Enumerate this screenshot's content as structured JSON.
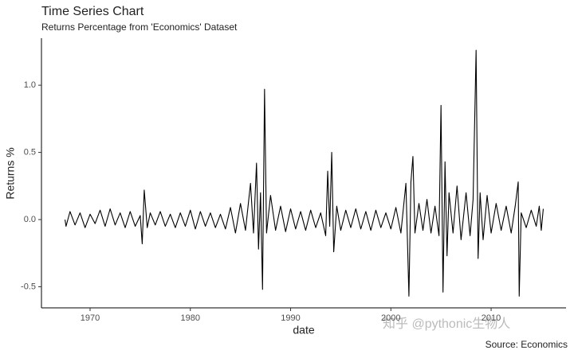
{
  "chart_data": {
    "type": "line",
    "title": "Time Series Chart",
    "subtitle": "Returns Percentage from 'Economics' Dataset",
    "x_label": "date",
    "y_label": "Returns %",
    "caption": "Source: Economics",
    "annotation": "知乎 @python​ic生物人",
    "x": [
      1967.5,
      1967.6,
      1968.0,
      1968.5,
      1969.0,
      1969.5,
      1970.0,
      1970.5,
      1971.0,
      1971.5,
      1972.0,
      1972.5,
      1973.0,
      1973.5,
      1974.0,
      1974.5,
      1975.0,
      1975.2,
      1975.4,
      1975.7,
      1976.0,
      1976.5,
      1977.0,
      1977.5,
      1978.0,
      1978.5,
      1979.0,
      1979.5,
      1980.0,
      1980.5,
      1981.0,
      1981.5,
      1982.0,
      1982.5,
      1983.0,
      1983.5,
      1984.0,
      1984.5,
      1985.0,
      1985.5,
      1986.0,
      1986.3,
      1986.6,
      1986.8,
      1987.0,
      1987.2,
      1987.4,
      1987.6,
      1988.0,
      1988.5,
      1989.0,
      1989.5,
      1990.0,
      1990.5,
      1991.0,
      1991.5,
      1992.0,
      1992.5,
      1993.0,
      1993.5,
      1993.7,
      1993.9,
      1994.1,
      1994.3,
      1994.6,
      1995.0,
      1995.5,
      1996.0,
      1996.5,
      1997.0,
      1997.5,
      1998.0,
      1998.5,
      1999.0,
      1999.5,
      2000.0,
      2000.5,
      2001.0,
      2001.5,
      2001.8,
      2002.0,
      2002.2,
      2002.4,
      2002.8,
      2003.2,
      2003.6,
      2004.0,
      2004.4,
      2004.8,
      2005.0,
      2005.2,
      2005.4,
      2005.6,
      2005.8,
      2006.2,
      2006.6,
      2007.0,
      2007.5,
      2007.9,
      2008.2,
      2008.5,
      2008.7,
      2008.9,
      2009.2,
      2009.6,
      2010.0,
      2010.5,
      2011.0,
      2011.5,
      2012.0,
      2012.4,
      2012.7,
      2012.8,
      2013.0,
      2013.5,
      2014.0,
      2014.5,
      2014.8,
      2015.0,
      2015.2
    ],
    "series": [
      {
        "name": "returns",
        "color": "#000000",
        "values": [
          0,
          -0.05,
          0.06,
          -0.04,
          0.05,
          -0.06,
          0.04,
          -0.03,
          0.07,
          -0.05,
          0.08,
          -0.04,
          0.05,
          -0.06,
          0.06,
          -0.05,
          0.03,
          -0.18,
          0.22,
          -0.06,
          0.05,
          -0.04,
          0.06,
          -0.05,
          0.04,
          -0.06,
          0.05,
          -0.05,
          0.07,
          -0.07,
          0.06,
          -0.05,
          0.05,
          -0.06,
          0.04,
          -0.07,
          0.09,
          -0.1,
          0.12,
          -0.08,
          0.27,
          -0.1,
          0.42,
          -0.22,
          0.2,
          -0.52,
          0.97,
          -0.1,
          0.18,
          -0.08,
          0.1,
          -0.09,
          0.08,
          -0.07,
          0.06,
          -0.08,
          0.07,
          -0.06,
          0.05,
          -0.12,
          0.36,
          -0.05,
          0.5,
          -0.24,
          0.1,
          -0.08,
          0.07,
          -0.06,
          0.08,
          -0.07,
          0.06,
          -0.08,
          0.07,
          -0.06,
          0.05,
          -0.07,
          0.09,
          -0.1,
          0.27,
          -0.57,
          0.28,
          0.47,
          -0.1,
          0.12,
          -0.08,
          0.15,
          -0.1,
          0.1,
          -0.12,
          0.85,
          -0.54,
          0.43,
          -0.27,
          0.2,
          -0.1,
          0.25,
          -0.15,
          0.2,
          -0.12,
          0.15,
          1.26,
          -0.29,
          0.2,
          -0.15,
          0.18,
          -0.1,
          0.12,
          -0.08,
          0.1,
          -0.1,
          0.1,
          0.28,
          -0.57,
          0.05,
          -0.06,
          0.07,
          -0.05,
          0.1,
          -0.08,
          0.08
        ]
      }
    ],
    "xlim": [
      1965.15,
      2017.47
    ],
    "ylim": [
      -0.657,
      1.35
    ],
    "xticks": [
      1970,
      1980,
      1990,
      2000,
      2010
    ],
    "yticks": [
      -0.5,
      {
        "value": 0,
        "label": "0.0"
      },
      0.5,
      {
        "value": 1,
        "label": "1.0"
      }
    ],
    "grid": false
  }
}
